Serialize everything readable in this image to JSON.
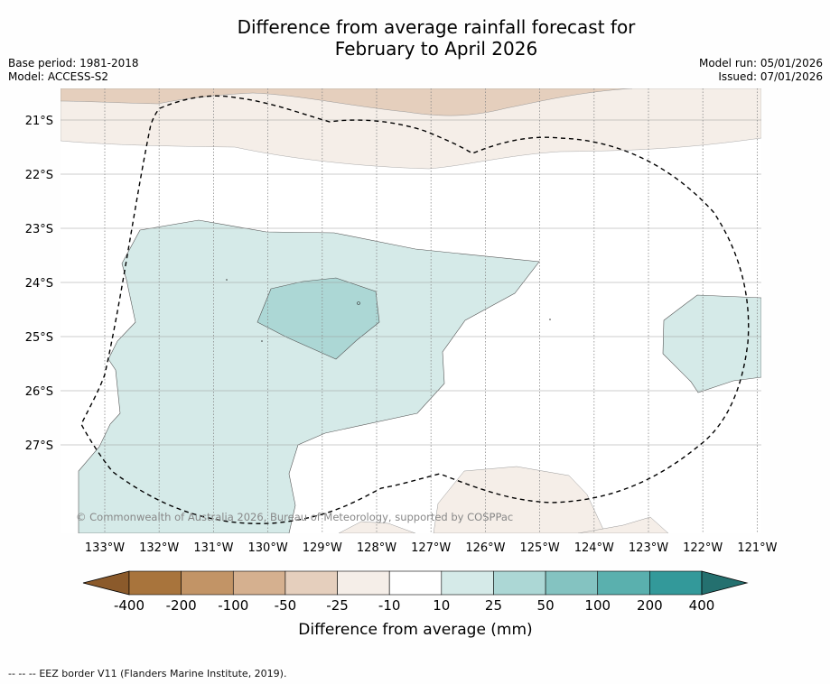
{
  "title": {
    "line1": "Difference from average rainfall forecast for",
    "line2": "February to April 2026"
  },
  "info_left": {
    "base_period": "Base period: 1981-2018",
    "model": "Model: ACCESS-S2"
  },
  "info_right": {
    "model_run": "Model run: 05/01/2026",
    "issued": "Issued: 07/01/2026"
  },
  "map": {
    "lon_labels": [
      "133°W",
      "132°W",
      "131°W",
      "130°W",
      "129°W",
      "128°W",
      "127°W",
      "126°W",
      "125°W",
      "124°W",
      "123°W",
      "122°W",
      "121°W"
    ],
    "lat_labels": [
      "21°S",
      "22°S",
      "23°S",
      "24°S",
      "25°S",
      "26°S",
      "27°S"
    ],
    "copyright": "© Commonwealth of Australia 2026, Bureau of Meteorology, supported by COSPPac"
  },
  "colorbar": {
    "tick_labels": [
      "-400",
      "-200",
      "-100",
      "-50",
      "-25",
      "-10",
      "10",
      "25",
      "50",
      "100",
      "200",
      "400"
    ],
    "colors": [
      "#a8743c",
      "#c29466",
      "#d5b08f",
      "#e5cfbd",
      "#f5eee8",
      "#ffffff",
      "#d5eae8",
      "#acd7d5",
      "#84c3c1",
      "#5ab0ae",
      "#33999a"
    ],
    "low_extend_color": "#8b5a2b",
    "high_extend_color": "#24706f",
    "label": "Difference from average (mm)"
  },
  "legend": {
    "dash_symbol": "--  --  --",
    "text": "EEZ border V11 (Flanders Marine Institute, 2019)."
  }
}
